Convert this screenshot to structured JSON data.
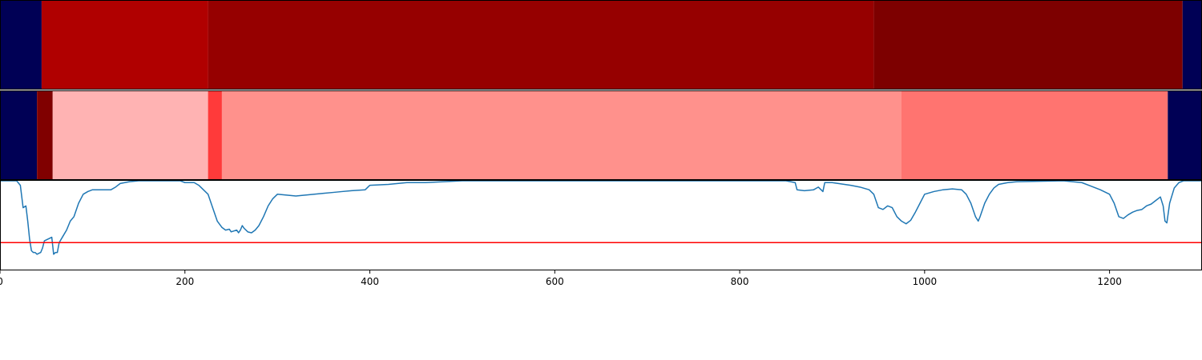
{
  "chart_data": {
    "type": "line",
    "xlim": [
      0,
      1300
    ],
    "xticks": [
      0,
      200,
      400,
      600,
      800,
      1000,
      1200
    ],
    "xtick_labels": [
      "0",
      "200",
      "400",
      "600",
      "800",
      "1000",
      "1200"
    ],
    "segment_rows": [
      {
        "name": "",
        "segments": [
          {
            "start": 0,
            "end": 45,
            "color": "#000055"
          },
          {
            "start": 45,
            "end": 225,
            "color": "#b00000"
          },
          {
            "start": 225,
            "end": 945,
            "color": "#960000"
          },
          {
            "start": 945,
            "end": 1279,
            "color": "#7d0000"
          },
          {
            "start": 1279,
            "end": 1300,
            "color": "#000055"
          }
        ]
      },
      {
        "name": "",
        "segments": [
          {
            "start": 0,
            "end": 40,
            "color": "#000055"
          },
          {
            "start": 40,
            "end": 57,
            "color": "#800000"
          },
          {
            "start": 57,
            "end": 225,
            "color": "#ffb3b3"
          },
          {
            "start": 225,
            "end": 240,
            "color": "#ff3a3a"
          },
          {
            "start": 240,
            "end": 975,
            "color": "#ff918c"
          },
          {
            "start": 975,
            "end": 1263,
            "color": "#ff7470"
          },
          {
            "start": 1263,
            "end": 1300,
            "color": "#000055"
          }
        ]
      }
    ],
    "line": {
      "color": "#1f77b4",
      "ylim": [
        0,
        1
      ],
      "threshold": 0.31,
      "threshold_color": "#ff0000",
      "points": [
        [
          0,
          1.0
        ],
        [
          18,
          1.0
        ],
        [
          22,
          0.95
        ],
        [
          25,
          0.7
        ],
        [
          28,
          0.72
        ],
        [
          30,
          0.55
        ],
        [
          32,
          0.35
        ],
        [
          34,
          0.22
        ],
        [
          36,
          0.2
        ],
        [
          38,
          0.2
        ],
        [
          40,
          0.18
        ],
        [
          44,
          0.2
        ],
        [
          46,
          0.25
        ],
        [
          48,
          0.33
        ],
        [
          50,
          0.34
        ],
        [
          54,
          0.36
        ],
        [
          56,
          0.37
        ],
        [
          58,
          0.18
        ],
        [
          60,
          0.2
        ],
        [
          62,
          0.2
        ],
        [
          64,
          0.31
        ],
        [
          68,
          0.38
        ],
        [
          72,
          0.45
        ],
        [
          76,
          0.55
        ],
        [
          80,
          0.6
        ],
        [
          85,
          0.75
        ],
        [
          90,
          0.85
        ],
        [
          95,
          0.88
        ],
        [
          100,
          0.9
        ],
        [
          110,
          0.9
        ],
        [
          120,
          0.9
        ],
        [
          125,
          0.93
        ],
        [
          130,
          0.97
        ],
        [
          140,
          0.99
        ],
        [
          150,
          1.0
        ],
        [
          180,
          1.0
        ],
        [
          195,
          1.0
        ],
        [
          200,
          0.98
        ],
        [
          210,
          0.98
        ],
        [
          215,
          0.95
        ],
        [
          220,
          0.9
        ],
        [
          225,
          0.85
        ],
        [
          230,
          0.7
        ],
        [
          235,
          0.55
        ],
        [
          240,
          0.48
        ],
        [
          244,
          0.45
        ],
        [
          248,
          0.46
        ],
        [
          250,
          0.43
        ],
        [
          253,
          0.44
        ],
        [
          256,
          0.45
        ],
        [
          258,
          0.42
        ],
        [
          260,
          0.45
        ],
        [
          262,
          0.5
        ],
        [
          264,
          0.47
        ],
        [
          268,
          0.43
        ],
        [
          272,
          0.42
        ],
        [
          276,
          0.45
        ],
        [
          280,
          0.5
        ],
        [
          285,
          0.6
        ],
        [
          290,
          0.72
        ],
        [
          295,
          0.8
        ],
        [
          300,
          0.85
        ],
        [
          310,
          0.84
        ],
        [
          320,
          0.83
        ],
        [
          330,
          0.84
        ],
        [
          340,
          0.85
        ],
        [
          350,
          0.86
        ],
        [
          360,
          0.87
        ],
        [
          370,
          0.88
        ],
        [
          380,
          0.89
        ],
        [
          395,
          0.9
        ],
        [
          400,
          0.95
        ],
        [
          420,
          0.96
        ],
        [
          440,
          0.98
        ],
        [
          460,
          0.98
        ],
        [
          480,
          0.99
        ],
        [
          500,
          1.0
        ],
        [
          600,
          1.0
        ],
        [
          700,
          1.0
        ],
        [
          800,
          1.0
        ],
        [
          850,
          1.0
        ],
        [
          860,
          0.98
        ],
        [
          862,
          0.9
        ],
        [
          870,
          0.89
        ],
        [
          880,
          0.9
        ],
        [
          885,
          0.93
        ],
        [
          890,
          0.88
        ],
        [
          892,
          0.98
        ],
        [
          900,
          0.98
        ],
        [
          920,
          0.95
        ],
        [
          930,
          0.93
        ],
        [
          940,
          0.9
        ],
        [
          945,
          0.85
        ],
        [
          950,
          0.7
        ],
        [
          955,
          0.68
        ],
        [
          960,
          0.72
        ],
        [
          965,
          0.7
        ],
        [
          970,
          0.6
        ],
        [
          975,
          0.55
        ],
        [
          980,
          0.52
        ],
        [
          985,
          0.56
        ],
        [
          990,
          0.65
        ],
        [
          995,
          0.75
        ],
        [
          1000,
          0.85
        ],
        [
          1010,
          0.88
        ],
        [
          1020,
          0.9
        ],
        [
          1030,
          0.91
        ],
        [
          1040,
          0.9
        ],
        [
          1045,
          0.85
        ],
        [
          1050,
          0.75
        ],
        [
          1055,
          0.6
        ],
        [
          1058,
          0.55
        ],
        [
          1060,
          0.6
        ],
        [
          1065,
          0.75
        ],
        [
          1070,
          0.85
        ],
        [
          1075,
          0.92
        ],
        [
          1080,
          0.96
        ],
        [
          1090,
          0.98
        ],
        [
          1100,
          0.99
        ],
        [
          1150,
          1.0
        ],
        [
          1170,
          0.98
        ],
        [
          1180,
          0.94
        ],
        [
          1190,
          0.9
        ],
        [
          1200,
          0.85
        ],
        [
          1205,
          0.75
        ],
        [
          1210,
          0.6
        ],
        [
          1215,
          0.58
        ],
        [
          1220,
          0.62
        ],
        [
          1225,
          0.65
        ],
        [
          1230,
          0.67
        ],
        [
          1235,
          0.68
        ],
        [
          1240,
          0.72
        ],
        [
          1245,
          0.74
        ],
        [
          1250,
          0.78
        ],
        [
          1255,
          0.82
        ],
        [
          1258,
          0.72
        ],
        [
          1260,
          0.55
        ],
        [
          1262,
          0.53
        ],
        [
          1265,
          0.75
        ],
        [
          1270,
          0.92
        ],
        [
          1275,
          0.98
        ],
        [
          1280,
          1.0
        ],
        [
          1300,
          1.0
        ]
      ]
    }
  }
}
